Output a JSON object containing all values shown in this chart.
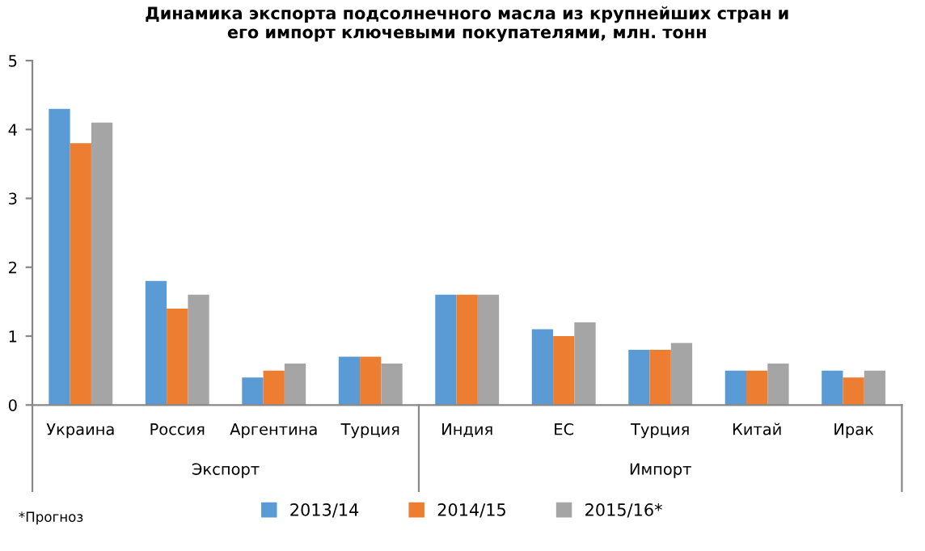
{
  "chart_data": {
    "type": "bar",
    "title": "Динамика экспорта подсолнечного масла из крупнейших стран и\nего импорт ключевыми покупателями, млн. тонн",
    "categories": [
      "Украина",
      "Россия",
      "Аргентина",
      "Турция",
      "Индия",
      "ЕС",
      "Турция",
      "Китай",
      "Ирак"
    ],
    "series": [
      {
        "name": "2013/14",
        "color": "#5b9bd5",
        "values": [
          4.3,
          1.8,
          0.4,
          0.7,
          1.6,
          1.1,
          0.8,
          0.5,
          0.5
        ]
      },
      {
        "name": "2014/15",
        "color": "#ed7d31",
        "values": [
          3.8,
          1.4,
          0.5,
          0.7,
          1.6,
          1.0,
          0.8,
          0.5,
          0.4
        ]
      },
      {
        "name": "2015/16*",
        "color": "#a5a5a5",
        "values": [
          4.1,
          1.6,
          0.6,
          0.6,
          1.6,
          1.2,
          0.9,
          0.6,
          0.5
        ]
      }
    ],
    "annotations": [
      "Экспорт",
      "Импорт",
      "*Прогноз"
    ],
    "ylim": [
      0,
      5
    ],
    "yticks": [
      0,
      1,
      2,
      3,
      4,
      5
    ],
    "grid": false,
    "legend": "bottom"
  }
}
